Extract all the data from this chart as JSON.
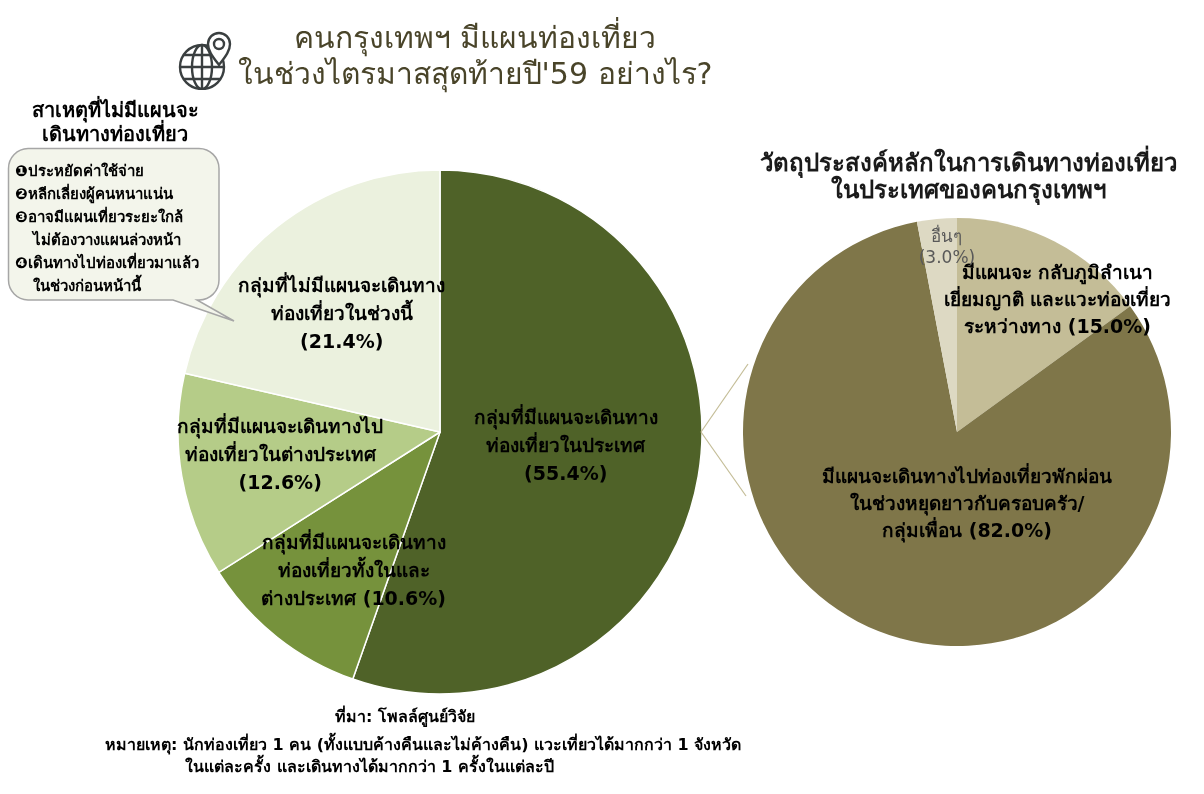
{
  "chart_data": [
    {
      "type": "pie",
      "title": "คนกรุงเทพฯ มีแผนท่องเที่ยวในช่วงไตรมาสสุดท้ายปี'59 อย่างไร?",
      "categories": [
        "กลุ่มที่มีแผนจะเดินทางท่องเที่ยวในประเทศ",
        "กลุ่มที่มีแผนจะเดินทางท่องเที่ยวทั้งในและต่างประเทศ",
        "กลุ่มที่มีแผนจะเดินทางไปท่องเที่ยวในต่างประเทศ",
        "กลุ่มที่ไม่มีแผนจะเดินทางท่องเที่ยวในช่วงนี้"
      ],
      "values": [
        55.4,
        10.6,
        12.6,
        21.4
      ],
      "colors": [
        "#4f6228",
        "#76923c",
        "#b5cc88",
        "#ebf1de"
      ],
      "value_labels": [
        "(55.4%)",
        "(10.6%)",
        "(12.6%)",
        "(21.4%)"
      ],
      "annotations": [
        "สาเหตุที่ไม่มีแผนจะเดินทางท่องเที่ยว",
        "❶ประหยัดค่าใช้จ่าย",
        "❷หลีกเลี่ยงผู้คนหนาแน่น",
        "❸อาจมีแผนเที่ยวระยะใกล้ ไม่ต้องวางแผนล่วงหน้า",
        "❹เดินทางไปท่องเที่ยวมาแล้ว ในช่วงก่อนหน้านี้",
        "ที่มา: โพลล์ศูนย์วิจัย",
        "หมายเหตุ: นักท่องเที่ยว 1 คน (ทั้งแบบค้างคืนและไม่ค้างคืน) แวะเที่ยวได้มากกว่า 1 จังหวัดในแต่ละครั้ง และเดินทางได้มากกว่า 1 ครั้งในแต่ละปี"
      ]
    },
    {
      "type": "pie",
      "title": "วัตถุประสงค์หลักในการเดินทางท่องเที่ยวในประเทศของคนกรุงเทพฯ",
      "categories": [
        "มีแผนจะ กลับภูมิลำเนา เยี่ยมญาติ และแวะท่องเที่ยวระหว่างทาง",
        "มีแผนจะเดินทางไปท่องเที่ยวพักผ่อนในช่วงหยุดยาวกับครอบครัว/กลุ่มเพื่อน",
        "อื่นๆ"
      ],
      "values": [
        15,
        82,
        3
      ],
      "colors": [
        "#c4bd97",
        "#7f7649",
        "#ddd9c3"
      ],
      "value_labels": [
        "(15.0%)",
        "(82.0%)",
        "(3.0%)"
      ]
    }
  ]
}
